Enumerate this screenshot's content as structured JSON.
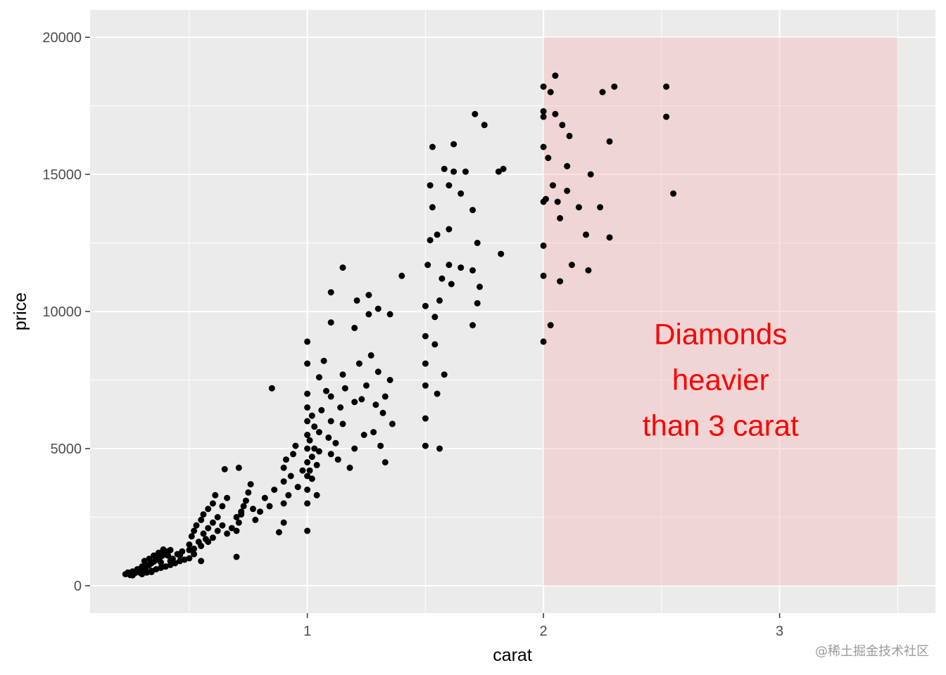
{
  "chart_data": {
    "type": "scatter",
    "xlabel": "carat",
    "ylabel": "price",
    "xlim": [
      0.08,
      3.66
    ],
    "ylim": [
      -1000,
      21000
    ],
    "x_ticks": [
      1,
      2,
      3
    ],
    "x_tick_labels": [
      "1",
      "2",
      "3"
    ],
    "y_ticks": [
      0,
      5000,
      10000,
      15000,
      20000
    ],
    "y_tick_labels": [
      "0",
      "5000",
      "10000",
      "15000",
      "20000"
    ],
    "x_minor": [
      0.5,
      1.5,
      2.5,
      3.5
    ],
    "y_minor": [
      2500,
      7500,
      12500,
      17500
    ],
    "grid": true,
    "colors": {
      "panel": "#ebebeb",
      "grid": "#ffffff",
      "points": "#000000",
      "highlight": "#f5b5b5",
      "annotation": "#ff0000"
    },
    "highlight_rect": {
      "xmin": 2,
      "xmax": 3.5,
      "ymin": 0,
      "ymax": 20000
    },
    "annotation": {
      "x": 2.75,
      "y": 7500,
      "lines": [
        "Diamonds",
        "heavier",
        "than 3 carat"
      ]
    },
    "points": [
      [
        0.23,
        420
      ],
      [
        0.24,
        480
      ],
      [
        0.25,
        390
      ],
      [
        0.26,
        520
      ],
      [
        0.27,
        460
      ],
      [
        0.28,
        540
      ],
      [
        0.29,
        480
      ],
      [
        0.3,
        560
      ],
      [
        0.31,
        620
      ],
      [
        0.32,
        700
      ],
      [
        0.33,
        760
      ],
      [
        0.34,
        820
      ],
      [
        0.35,
        880
      ],
      [
        0.36,
        950
      ],
      [
        0.37,
        1000
      ],
      [
        0.38,
        1060
      ],
      [
        0.39,
        1120
      ],
      [
        0.4,
        1200
      ],
      [
        0.41,
        1250
      ],
      [
        0.42,
        1300
      ],
      [
        0.3,
        420
      ],
      [
        0.32,
        480
      ],
      [
        0.34,
        540
      ],
      [
        0.36,
        600
      ],
      [
        0.38,
        650
      ],
      [
        0.4,
        700
      ],
      [
        0.42,
        760
      ],
      [
        0.44,
        820
      ],
      [
        0.46,
        900
      ],
      [
        0.48,
        950
      ],
      [
        0.31,
        900
      ],
      [
        0.33,
        980
      ],
      [
        0.35,
        1100
      ],
      [
        0.37,
        1200
      ],
      [
        0.39,
        1320
      ],
      [
        0.41,
        1100
      ],
      [
        0.43,
        980
      ],
      [
        0.45,
        1150
      ],
      [
        0.47,
        1250
      ],
      [
        0.5,
        1000
      ],
      [
        0.26,
        380
      ],
      [
        0.28,
        600
      ],
      [
        0.3,
        700
      ],
      [
        0.34,
        500
      ],
      [
        0.38,
        850
      ],
      [
        0.42,
        900
      ],
      [
        0.46,
        1100
      ],
      [
        0.5,
        1300
      ],
      [
        0.52,
        1150
      ],
      [
        0.55,
        900
      ],
      [
        0.5,
        1500
      ],
      [
        0.51,
        1800
      ],
      [
        0.52,
        2000
      ],
      [
        0.53,
        2200
      ],
      [
        0.54,
        1600
      ],
      [
        0.55,
        2400
      ],
      [
        0.56,
        1900
      ],
      [
        0.57,
        1700
      ],
      [
        0.58,
        2100
      ],
      [
        0.6,
        2300
      ],
      [
        0.52,
        1350
      ],
      [
        0.55,
        1450
      ],
      [
        0.58,
        1600
      ],
      [
        0.6,
        1750
      ],
      [
        0.62,
        2000
      ],
      [
        0.64,
        2200
      ],
      [
        0.66,
        1900
      ],
      [
        0.68,
        2100
      ],
      [
        0.7,
        2500
      ],
      [
        0.72,
        2700
      ],
      [
        0.56,
        2600
      ],
      [
        0.58,
        2800
      ],
      [
        0.6,
        3000
      ],
      [
        0.61,
        3300
      ],
      [
        0.62,
        2500
      ],
      [
        0.64,
        2900
      ],
      [
        0.66,
        3200
      ],
      [
        0.65,
        4250
      ],
      [
        0.71,
        4300
      ],
      [
        0.7,
        1050
      ],
      [
        0.7,
        2000
      ],
      [
        0.71,
        2300
      ],
      [
        0.72,
        2600
      ],
      [
        0.73,
        2900
      ],
      [
        0.74,
        3100
      ],
      [
        0.75,
        3400
      ],
      [
        0.76,
        3700
      ],
      [
        0.77,
        2800
      ],
      [
        0.78,
        2400
      ],
      [
        0.8,
        2700
      ],
      [
        0.82,
        3200
      ],
      [
        0.84,
        2900
      ],
      [
        0.86,
        3500
      ],
      [
        0.85,
        7200
      ],
      [
        0.88,
        1950
      ],
      [
        0.9,
        2300
      ],
      [
        0.9,
        3000
      ],
      [
        0.9,
        3800
      ],
      [
        0.9,
        4300
      ],
      [
        0.91,
        4600
      ],
      [
        0.92,
        3300
      ],
      [
        0.93,
        4000
      ],
      [
        0.94,
        4800
      ],
      [
        0.95,
        5100
      ],
      [
        0.96,
        3600
      ],
      [
        0.98,
        4200
      ],
      [
        1.0,
        2000
      ],
      [
        1.0,
        3000
      ],
      [
        1.0,
        3500
      ],
      [
        1.0,
        4000
      ],
      [
        1.0,
        4500
      ],
      [
        1.0,
        5000
      ],
      [
        1.0,
        5500
      ],
      [
        1.0,
        6000
      ],
      [
        1.0,
        6500
      ],
      [
        1.0,
        7000
      ],
      [
        1.0,
        8100
      ],
      [
        1.0,
        8900
      ],
      [
        1.01,
        4200
      ],
      [
        1.01,
        5300
      ],
      [
        1.02,
        3900
      ],
      [
        1.02,
        4700
      ],
      [
        1.02,
        6200
      ],
      [
        1.03,
        5000
      ],
      [
        1.03,
        5800
      ],
      [
        1.04,
        3300
      ],
      [
        1.04,
        4400
      ],
      [
        1.05,
        4900
      ],
      [
        1.05,
        5600
      ],
      [
        1.05,
        7600
      ],
      [
        1.06,
        6400
      ],
      [
        1.07,
        8200
      ],
      [
        1.08,
        7100
      ],
      [
        1.09,
        5400
      ],
      [
        1.1,
        4800
      ],
      [
        1.1,
        6000
      ],
      [
        1.1,
        6900
      ],
      [
        1.1,
        10700
      ],
      [
        1.1,
        9600
      ],
      [
        1.12,
        5200
      ],
      [
        1.13,
        4600
      ],
      [
        1.14,
        6500
      ],
      [
        1.15,
        5900
      ],
      [
        1.15,
        7700
      ],
      [
        1.15,
        11600
      ],
      [
        1.16,
        7200
      ],
      [
        1.18,
        4300
      ],
      [
        1.2,
        5000
      ],
      [
        1.2,
        6700
      ],
      [
        1.2,
        9400
      ],
      [
        1.21,
        10400
      ],
      [
        1.22,
        8100
      ],
      [
        1.23,
        6800
      ],
      [
        1.24,
        5500
      ],
      [
        1.25,
        7300
      ],
      [
        1.26,
        10600
      ],
      [
        1.26,
        9900
      ],
      [
        1.27,
        8400
      ],
      [
        1.28,
        5600
      ],
      [
        1.29,
        6600
      ],
      [
        1.3,
        7800
      ],
      [
        1.3,
        10100
      ],
      [
        1.31,
        5100
      ],
      [
        1.32,
        6300
      ],
      [
        1.33,
        4500
      ],
      [
        1.33,
        6900
      ],
      [
        1.35,
        7500
      ],
      [
        1.35,
        9900
      ],
      [
        1.36,
        5900
      ],
      [
        1.4,
        11300
      ],
      [
        1.5,
        5100
      ],
      [
        1.5,
        6100
      ],
      [
        1.5,
        7300
      ],
      [
        1.5,
        8100
      ],
      [
        1.5,
        9100
      ],
      [
        1.5,
        10200
      ],
      [
        1.51,
        11700
      ],
      [
        1.52,
        12600
      ],
      [
        1.52,
        14600
      ],
      [
        1.53,
        13800
      ],
      [
        1.53,
        16000
      ],
      [
        1.54,
        9800
      ],
      [
        1.54,
        8800
      ],
      [
        1.55,
        7000
      ],
      [
        1.55,
        12800
      ],
      [
        1.56,
        10400
      ],
      [
        1.56,
        5000
      ],
      [
        1.57,
        11200
      ],
      [
        1.58,
        7700
      ],
      [
        1.6,
        11700
      ],
      [
        1.6,
        14600
      ],
      [
        1.61,
        11000
      ],
      [
        1.62,
        15100
      ],
      [
        1.62,
        16100
      ],
      [
        1.65,
        14300
      ],
      [
        1.65,
        11600
      ],
      [
        1.67,
        15100
      ],
      [
        1.7,
        9500
      ],
      [
        1.7,
        11500
      ],
      [
        1.7,
        13700
      ],
      [
        1.71,
        17200
      ],
      [
        1.72,
        10300
      ],
      [
        1.72,
        12500
      ],
      [
        1.73,
        10900
      ],
      [
        1.75,
        16800
      ],
      [
        1.81,
        15100
      ],
      [
        1.82,
        12100
      ],
      [
        1.83,
        15200
      ],
      [
        1.6,
        13000
      ],
      [
        1.58,
        15200
      ],
      [
        2.0,
        8900
      ],
      [
        2.0,
        11300
      ],
      [
        2.0,
        12400
      ],
      [
        2.0,
        14000
      ],
      [
        2.0,
        16000
      ],
      [
        2.0,
        17100
      ],
      [
        2.0,
        17300
      ],
      [
        2.0,
        18200
      ],
      [
        2.01,
        14100
      ],
      [
        2.02,
        15600
      ],
      [
        2.03,
        9500
      ],
      [
        2.03,
        18000
      ],
      [
        2.04,
        14600
      ],
      [
        2.05,
        17200
      ],
      [
        2.05,
        18600
      ],
      [
        2.06,
        14000
      ],
      [
        2.07,
        13400
      ],
      [
        2.07,
        11100
      ],
      [
        2.08,
        16800
      ],
      [
        2.1,
        14400
      ],
      [
        2.1,
        15300
      ],
      [
        2.11,
        16400
      ],
      [
        2.12,
        11700
      ],
      [
        2.15,
        13800
      ],
      [
        2.18,
        12800
      ],
      [
        2.19,
        11500
      ],
      [
        2.2,
        15000
      ],
      [
        2.24,
        13800
      ],
      [
        2.25,
        18000
      ],
      [
        2.28,
        16200
      ],
      [
        2.28,
        12700
      ],
      [
        2.3,
        18200
      ],
      [
        2.52,
        18200
      ],
      [
        2.52,
        17100
      ],
      [
        2.55,
        14300
      ]
    ]
  },
  "watermark": "@稀土掘金技术社区"
}
